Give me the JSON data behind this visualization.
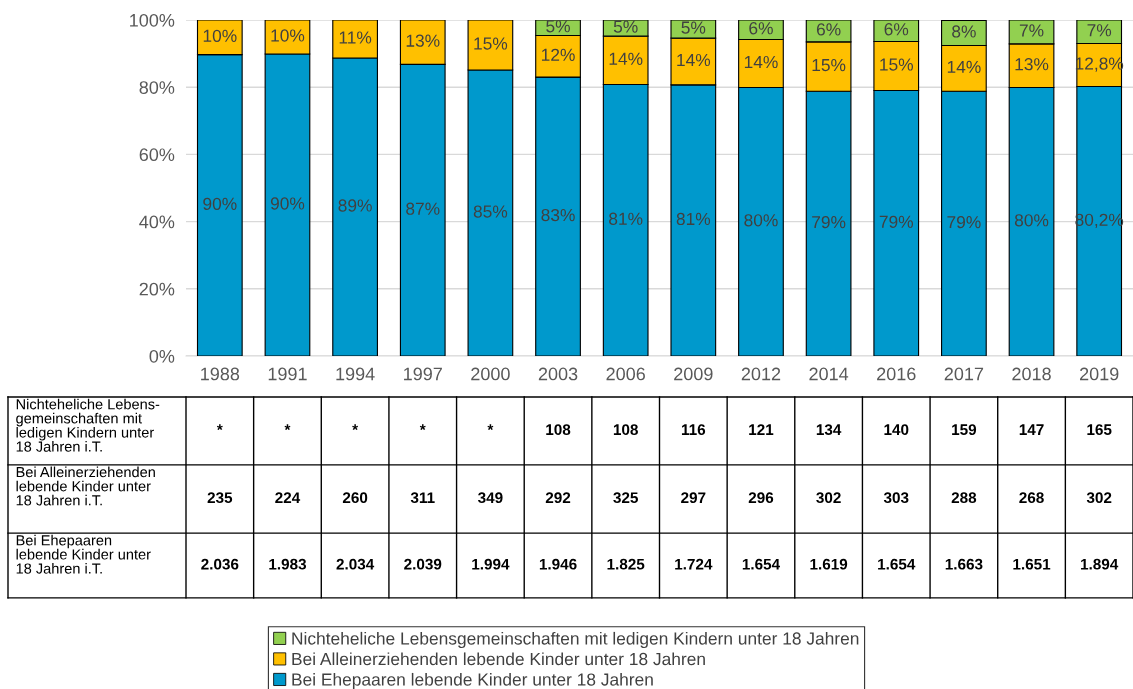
{
  "chart_data": {
    "type": "bar",
    "stacked": true,
    "categories": [
      "1988",
      "1991",
      "1994",
      "1997",
      "2000",
      "2003",
      "2006",
      "2009",
      "2012",
      "2014",
      "2016",
      "2017",
      "2018",
      "2019"
    ],
    "series": [
      {
        "name": "Bei Ehepaaren lebende Kinder unter 18 Jahren",
        "color": "#0099cc",
        "values": [
          89.7,
          89.9,
          88.7,
          86.8,
          85.1,
          83.0,
          80.8,
          80.7,
          79.9,
          78.8,
          79.0,
          78.8,
          79.9,
          80.2
        ],
        "value_labels": [
          "90%",
          "90%",
          "89%",
          "87%",
          "85%",
          "83%",
          "81%",
          "81%",
          "80%",
          "79%",
          "79%",
          "79%",
          "80%",
          "80,2%"
        ]
      },
      {
        "name": "Bei Alleinerziehenden lebende Kinder unter 18 Jahren",
        "color": "#ffc000",
        "values": [
          10.3,
          10.1,
          11.3,
          13.2,
          14.9,
          12.4,
          14.4,
          13.9,
          14.3,
          14.7,
          14.6,
          13.6,
          13.0,
          12.8
        ],
        "value_labels": [
          "10%",
          "10%",
          "11%",
          "13%",
          "15%",
          "12%",
          "14%",
          "14%",
          "14%",
          "15%",
          "15%",
          "14%",
          "13%",
          "12,8%"
        ]
      },
      {
        "name": "Nichteheliche Lebensgemeinschaften mit ledigen Kindern unter 18 Jahren",
        "color": "#92d050",
        "values": [
          null,
          null,
          null,
          null,
          null,
          4.6,
          4.8,
          5.4,
          5.8,
          6.5,
          6.4,
          7.5,
          7.1,
          7.0
        ],
        "value_labels": [
          null,
          null,
          null,
          null,
          null,
          "5%",
          "5%",
          "5%",
          "6%",
          "6%",
          "6%",
          "8%",
          "7%",
          "7%"
        ]
      }
    ],
    "ylim": [
      0,
      100
    ],
    "yticks": [
      {
        "value": 0,
        "label": "0%"
      },
      {
        "value": 20,
        "label": "20%"
      },
      {
        "value": 40,
        "label": "40%"
      },
      {
        "value": 60,
        "label": "60%"
      },
      {
        "value": 80,
        "label": "80%"
      },
      {
        "value": 100,
        "label": "100%"
      }
    ],
    "grid": "y",
    "legend": "bottom",
    "annotations": [
      "Nichteheliche Lebens-\ngemeinschaften mit\nledigen Kindern unter\n18 Jahren i.T.",
      "*",
      "*",
      "*",
      "*",
      "*",
      "108",
      "108",
      "116",
      "121",
      "134",
      "140",
      "159",
      "147",
      "165",
      "Bei Alleinerziehenden\nlebende Kinder unter\n18 Jahren i.T.",
      "235",
      "224",
      "260",
      "311",
      "349",
      "292",
      "325",
      "297",
      "296",
      "302",
      "303",
      "288",
      "268",
      "302",
      "Bei Ehepaaren\nlebende Kinder unter\n18 Jahren i.T.",
      "2.036",
      "1.983",
      "2.034",
      "2.039",
      "1.994",
      "1.946",
      "1.825",
      "1.724",
      "1.654",
      "1.619",
      "1.654",
      "1.663",
      "1.651",
      "1.894"
    ]
  }
}
